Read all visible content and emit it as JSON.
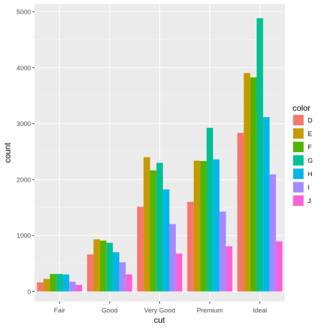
{
  "chart_data": {
    "type": "bar",
    "xlabel": "cut",
    "ylabel": "count",
    "categories": [
      "Fair",
      "Good",
      "Very Good",
      "Premium",
      "Ideal"
    ],
    "ylim": [
      0,
      5200
    ],
    "yticks": [
      0,
      1000,
      2000,
      3000,
      4000,
      5000
    ],
    "grid": true,
    "legend": {
      "title": "color",
      "placement": "right"
    },
    "series": [
      {
        "name": "D",
        "color": "#F8766D",
        "values": [
          163,
          662,
          1513,
          1603,
          2834
        ]
      },
      {
        "name": "E",
        "color": "#C49A00",
        "values": [
          224,
          933,
          2400,
          2337,
          3903
        ]
      },
      {
        "name": "F",
        "color": "#53B400",
        "values": [
          312,
          909,
          2164,
          2331,
          3826
        ]
      },
      {
        "name": "G",
        "color": "#00C094",
        "values": [
          314,
          871,
          2299,
          2924,
          4884
        ]
      },
      {
        "name": "H",
        "color": "#00B6EB",
        "values": [
          303,
          702,
          1824,
          2360,
          3115
        ]
      },
      {
        "name": "I",
        "color": "#A58AFF",
        "values": [
          175,
          522,
          1204,
          1428,
          2093
        ]
      },
      {
        "name": "J",
        "color": "#FB61D7",
        "values": [
          119,
          307,
          678,
          808,
          896
        ]
      }
    ]
  }
}
